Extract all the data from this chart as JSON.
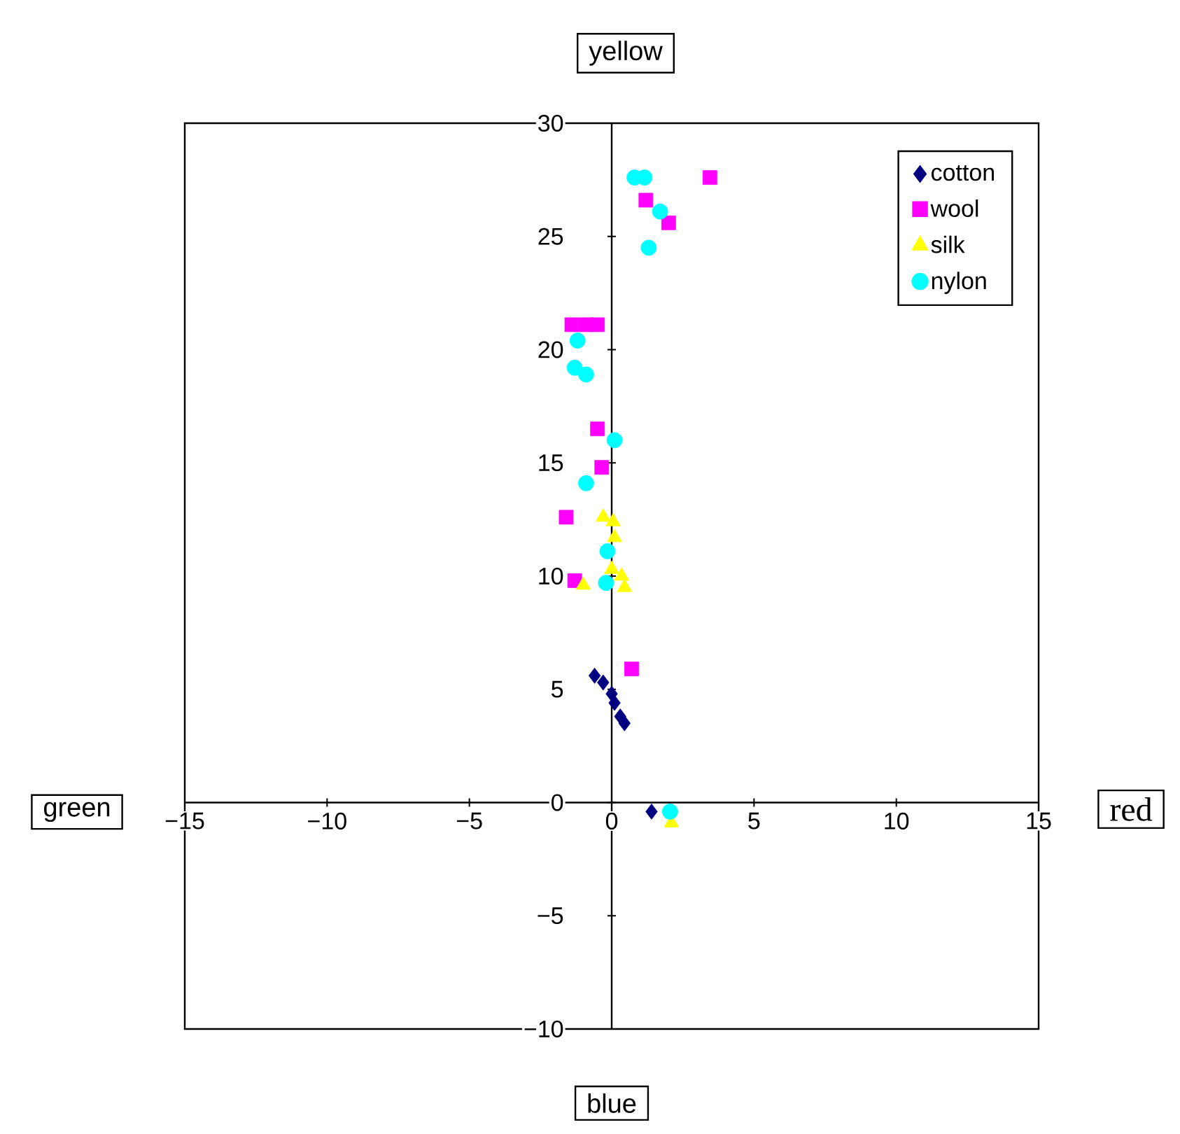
{
  "chart_data": {
    "type": "scatter",
    "xlabel": "red",
    "ylabel": "yellow",
    "annotations": [
      "green",
      "blue"
    ],
    "xlim": [
      -15,
      15
    ],
    "ylim": [
      -10,
      30
    ],
    "xticks": [
      {
        "value": -15,
        "label": "−15"
      },
      {
        "value": -10,
        "label": "−10"
      },
      {
        "value": -5,
        "label": "−5"
      },
      0,
      5,
      10,
      15
    ],
    "yticks": [
      {
        "value": -10,
        "label": "−10"
      },
      {
        "value": -5,
        "label": "−5"
      },
      0,
      5,
      10,
      15,
      20,
      25,
      30
    ],
    "grid": false,
    "legend": "top right",
    "series": [
      {
        "name": "cotton",
        "color": "#000080",
        "marker": "diamond",
        "x": [
          -0.6,
          -0.3,
          0.0,
          0.1,
          0.3,
          0.45,
          1.4
        ],
        "values": [
          5.6,
          5.3,
          4.8,
          4.4,
          3.8,
          3.5,
          -0.4
        ]
      },
      {
        "name": "wool",
        "color": "#ff00ff",
        "marker": "square",
        "x": [
          3.45,
          1.2,
          2.0,
          -1.4,
          -0.9,
          -0.5,
          -0.5,
          -0.35,
          -1.6,
          -1.3,
          0.7
        ],
        "values": [
          27.6,
          26.6,
          25.6,
          21.1,
          21.1,
          21.1,
          16.5,
          14.8,
          12.6,
          9.8,
          5.9
        ]
      },
      {
        "name": "silk",
        "color": "#ffff00",
        "marker": "triangle",
        "x": [
          -0.3,
          0.05,
          0.1,
          0.0,
          0.35,
          0.45,
          -1.0,
          2.1
        ],
        "values": [
          12.6,
          12.4,
          11.7,
          10.3,
          10.0,
          9.5,
          9.6,
          -0.9
        ]
      },
      {
        "name": "nylon",
        "color": "#00ffff",
        "marker": "circle",
        "x": [
          0.8,
          1.15,
          1.7,
          1.3,
          -1.2,
          -1.3,
          -0.9,
          0.1,
          -0.9,
          -0.15,
          -0.2,
          2.05
        ],
        "values": [
          27.6,
          27.6,
          26.1,
          24.5,
          20.4,
          19.2,
          18.9,
          16.0,
          14.1,
          11.1,
          9.7,
          -0.4
        ]
      }
    ]
  }
}
